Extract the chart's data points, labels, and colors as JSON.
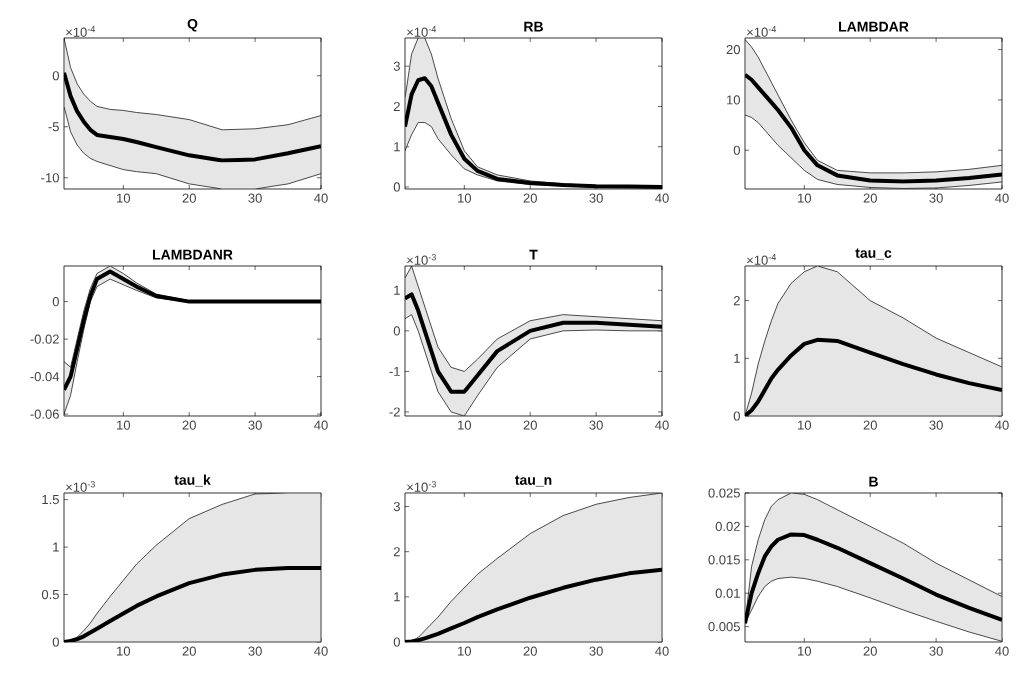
{
  "chart_data": [
    {
      "type": "line",
      "title": "Q",
      "annotations": [
        "×10$^{-4}$"
      ],
      "x": [
        1,
        2,
        3,
        4,
        5,
        6,
        8,
        10,
        12,
        15,
        20,
        25,
        30,
        35,
        40
      ],
      "xlim": [
        1,
        40
      ],
      "xticks": [
        10,
        20,
        30,
        40
      ],
      "ylim": [
        -11.1,
        3.7
      ],
      "yticks": [
        -10,
        -5,
        0
      ],
      "series": [
        {
          "color": "#000000",
          "values": [
            0.3,
            -2,
            -3.5,
            -4.5,
            -5.3,
            -5.8,
            -6,
            -6.2,
            -6.5,
            -7,
            -7.8,
            -8.3,
            -8.2,
            -7.6,
            -6.9
          ],
          "upper": [
            3.7,
            0.8,
            -0.8,
            -1.8,
            -2.5,
            -3,
            -3.3,
            -3.4,
            -3.6,
            -3.8,
            -4.3,
            -5.3,
            -5.2,
            -4.8,
            -3.9
          ],
          "lower": [
            -3,
            -5.5,
            -6.8,
            -7.6,
            -8.1,
            -8.4,
            -8.8,
            -9.2,
            -9.4,
            -9.6,
            -10.6,
            -11.1,
            -11.1,
            -10.6,
            -9.6
          ]
        }
      ]
    },
    {
      "type": "line",
      "title": "RB",
      "annotations": [
        "×10$^{-4}$"
      ],
      "x": [
        1,
        2,
        3,
        4,
        5,
        6,
        8,
        10,
        12,
        15,
        20,
        25,
        30,
        35,
        40
      ],
      "xlim": [
        1,
        40
      ],
      "xticks": [
        10,
        20,
        30,
        40
      ],
      "ylim": [
        -0.05,
        3.7
      ],
      "yticks": [
        0,
        1,
        2,
        3
      ],
      "series": [
        {
          "color": "#000000",
          "values": [
            1.5,
            2.3,
            2.65,
            2.7,
            2.5,
            2.1,
            1.3,
            0.7,
            0.4,
            0.2,
            0.1,
            0.05,
            0.02,
            0.01,
            0
          ],
          "upper": [
            2.2,
            3.3,
            3.7,
            3.7,
            3.3,
            2.7,
            1.7,
            0.9,
            0.5,
            0.3,
            0.15,
            0.08,
            0.03,
            0.02,
            0.01
          ],
          "lower": [
            0.9,
            1.3,
            1.6,
            1.6,
            1.5,
            1.2,
            0.8,
            0.45,
            0.3,
            0.15,
            0.06,
            0.03,
            0.01,
            0,
            0
          ]
        }
      ]
    },
    {
      "type": "line",
      "title": "LAMBDAR",
      "annotations": [
        "×10$^{-4}$"
      ],
      "x": [
        1,
        2,
        3,
        4,
        5,
        6,
        8,
        10,
        12,
        15,
        20,
        25,
        30,
        35,
        40
      ],
      "xlim": [
        1,
        40
      ],
      "xticks": [
        10,
        20,
        30,
        40
      ],
      "ylim": [
        -7.7,
        22.3
      ],
      "yticks": [
        0,
        10,
        20
      ],
      "series": [
        {
          "color": "#000000",
          "values": [
            15,
            14,
            12.5,
            11,
            9.5,
            8,
            4.5,
            0,
            -3,
            -5,
            -6,
            -6.2,
            -6,
            -5.5,
            -4.8
          ],
          "upper": [
            22,
            20.5,
            18.5,
            16,
            13.5,
            11,
            6,
            1.5,
            -2,
            -4,
            -4.5,
            -4.5,
            -4.3,
            -3.8,
            -3
          ],
          "lower": [
            7,
            6.5,
            5.5,
            4,
            2.5,
            1,
            -1.5,
            -4,
            -5.8,
            -6.8,
            -7.4,
            -7.6,
            -7.5,
            -7,
            -6.3
          ]
        }
      ]
    },
    {
      "type": "line",
      "title": "LAMBDANR",
      "x": [
        1,
        2,
        3,
        4,
        5,
        6,
        8,
        10,
        12,
        15,
        20,
        25,
        30,
        35,
        40
      ],
      "xlim": [
        1,
        40
      ],
      "xticks": [
        10,
        20,
        30,
        40
      ],
      "ylim": [
        -0.061,
        0.019
      ],
      "yticks": [
        -0.06,
        -0.04,
        -0.02,
        0
      ],
      "series": [
        {
          "color": "#000000",
          "values": [
            -0.047,
            -0.04,
            -0.025,
            -0.01,
            0.003,
            0.012,
            0.016,
            0.012,
            0.008,
            0.003,
            0,
            0,
            0,
            0,
            0
          ],
          "upper": [
            -0.032,
            -0.035,
            -0.02,
            -0.005,
            0.007,
            0.015,
            0.019,
            0.015,
            0.01,
            0.004,
            0.0005,
            0.0003,
            0.0002,
            0.0002,
            0.0002
          ],
          "lower": [
            -0.06,
            -0.05,
            -0.032,
            -0.015,
            0,
            0.008,
            0.012,
            0.009,
            0.006,
            0.002,
            -0.0003,
            -0.0003,
            -0.0002,
            -0.0002,
            -0.0002
          ]
        }
      ]
    },
    {
      "type": "line",
      "title": "T",
      "annotations": [
        "×10$^{-3}$"
      ],
      "x": [
        1,
        2,
        3,
        4,
        5,
        6,
        8,
        10,
        12,
        15,
        20,
        25,
        30,
        35,
        40
      ],
      "xlim": [
        1,
        40
      ],
      "xticks": [
        10,
        20,
        30,
        40
      ],
      "ylim": [
        -2.1,
        1.6
      ],
      "yticks": [
        -2,
        -1,
        0,
        1
      ],
      "series": [
        {
          "color": "#000000",
          "values": [
            0.8,
            0.9,
            0.5,
            0,
            -0.5,
            -1,
            -1.5,
            -1.5,
            -1.1,
            -0.5,
            0,
            0.2,
            0.2,
            0.15,
            0.1
          ],
          "upper": [
            1.3,
            1.6,
            1.1,
            0.6,
            0.1,
            -0.4,
            -0.9,
            -1,
            -0.7,
            -0.2,
            0.25,
            0.4,
            0.35,
            0.3,
            0.25
          ],
          "lower": [
            0.3,
            0.4,
            0,
            -0.5,
            -1,
            -1.5,
            -2,
            -2.1,
            -1.6,
            -0.9,
            -0.2,
            0,
            0.02,
            0,
            0
          ]
        }
      ]
    },
    {
      "type": "line",
      "title": "tau_c",
      "annotations": [
        "×10$^{-4}$"
      ],
      "x": [
        1,
        2,
        3,
        4,
        5,
        6,
        8,
        10,
        12,
        15,
        20,
        25,
        30,
        35,
        40
      ],
      "xlim": [
        1,
        40
      ],
      "xticks": [
        10,
        20,
        30,
        40
      ],
      "ylim": [
        0,
        2.6
      ],
      "yticks": [
        0,
        1,
        2
      ],
      "series": [
        {
          "color": "#000000",
          "values": [
            0,
            0.1,
            0.25,
            0.45,
            0.65,
            0.8,
            1.05,
            1.25,
            1.32,
            1.3,
            1.1,
            0.9,
            0.72,
            0.57,
            0.45
          ],
          "upper": [
            0,
            0.4,
            0.9,
            1.3,
            1.65,
            1.95,
            2.3,
            2.5,
            2.6,
            2.5,
            2,
            1.7,
            1.35,
            1.1,
            0.85
          ],
          "lower": [
            0,
            0,
            0,
            0,
            0,
            0,
            0,
            0,
            0,
            0,
            0,
            0,
            0,
            0,
            0
          ]
        }
      ]
    },
    {
      "type": "line",
      "title": "tau_k",
      "annotations": [
        "×10$^{-3}$"
      ],
      "x": [
        1,
        2,
        3,
        4,
        5,
        6,
        8,
        10,
        12,
        15,
        20,
        25,
        30,
        35,
        40
      ],
      "xlim": [
        1,
        40
      ],
      "xticks": [
        10,
        20,
        30,
        40
      ],
      "ylim": [
        0,
        1.57
      ],
      "yticks": [
        0,
        0.5,
        1,
        1.5
      ],
      "series": [
        {
          "color": "#000000",
          "values": [
            0,
            0.01,
            0.03,
            0.06,
            0.1,
            0.14,
            0.22,
            0.3,
            0.38,
            0.48,
            0.62,
            0.71,
            0.76,
            0.78,
            0.78
          ],
          "upper": [
            0,
            0.02,
            0.05,
            0.12,
            0.2,
            0.3,
            0.48,
            0.65,
            0.82,
            1.02,
            1.3,
            1.45,
            1.56,
            1.57,
            1.57
          ],
          "lower": [
            0,
            0,
            0,
            0,
            0,
            0,
            0,
            0,
            0,
            0,
            0,
            0,
            0,
            0,
            0
          ]
        }
      ]
    },
    {
      "type": "line",
      "title": "tau_n",
      "annotations": [
        "×10$^{-3}$"
      ],
      "x": [
        1,
        2,
        3,
        4,
        5,
        6,
        8,
        10,
        12,
        15,
        20,
        25,
        30,
        35,
        40
      ],
      "xlim": [
        1,
        40
      ],
      "xticks": [
        10,
        20,
        30,
        40
      ],
      "ylim": [
        0,
        3.3
      ],
      "yticks": [
        0,
        1,
        2,
        3
      ],
      "series": [
        {
          "color": "#000000",
          "values": [
            0,
            0.01,
            0.04,
            0.08,
            0.13,
            0.18,
            0.3,
            0.42,
            0.55,
            0.72,
            0.98,
            1.2,
            1.38,
            1.52,
            1.6
          ],
          "upper": [
            0,
            0.02,
            0.1,
            0.25,
            0.4,
            0.55,
            0.9,
            1.2,
            1.5,
            1.85,
            2.4,
            2.8,
            3.05,
            3.2,
            3.3
          ],
          "lower": [
            0,
            0,
            0,
            0,
            0,
            0,
            0,
            0,
            0,
            0,
            0,
            0,
            0,
            0,
            0
          ]
        }
      ]
    },
    {
      "type": "line",
      "title": "B",
      "x": [
        1,
        2,
        3,
        4,
        5,
        6,
        8,
        10,
        12,
        15,
        20,
        25,
        30,
        35,
        40
      ],
      "xlim": [
        1,
        40
      ],
      "xticks": [
        10,
        20,
        30,
        40
      ],
      "ylim": [
        0.0027,
        0.025
      ],
      "yticks": [
        0.005,
        0.01,
        0.015,
        0.02,
        0.025
      ],
      "series": [
        {
          "color": "#000000",
          "values": [
            0.0055,
            0.01,
            0.013,
            0.0155,
            0.017,
            0.018,
            0.0188,
            0.0187,
            0.018,
            0.0168,
            0.0145,
            0.0122,
            0.0098,
            0.0078,
            0.006
          ],
          "upper": [
            0.0055,
            0.014,
            0.018,
            0.021,
            0.023,
            0.024,
            0.025,
            0.0248,
            0.024,
            0.0225,
            0.02,
            0.0175,
            0.0145,
            0.012,
            0.0095
          ],
          "lower": [
            0.0055,
            0.0075,
            0.0095,
            0.011,
            0.0118,
            0.0122,
            0.0124,
            0.0122,
            0.0118,
            0.011,
            0.0093,
            0.0075,
            0.0058,
            0.0042,
            0.0028
          ]
        }
      ]
    }
  ]
}
